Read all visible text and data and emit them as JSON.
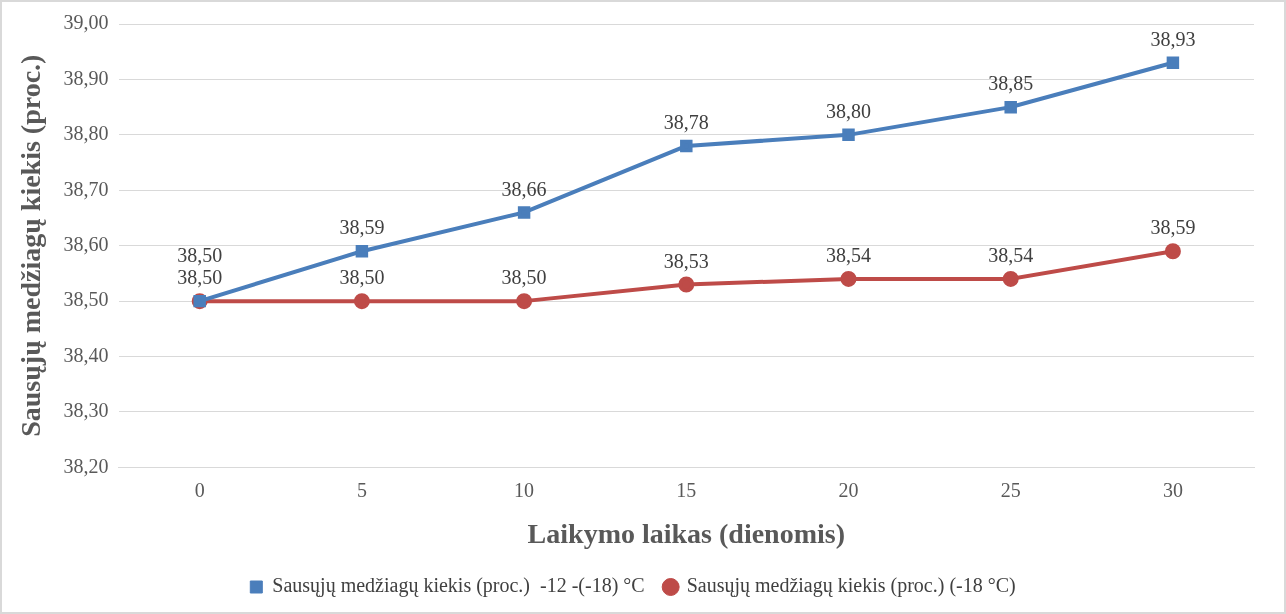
{
  "chart_data": {
    "type": "line",
    "xlabel": "Laikymo laikas (dienomis)",
    "ylabel": "Sausųjų medžiagų kiekis (proc.)",
    "categories": [
      "0",
      "5",
      "10",
      "15",
      "20",
      "25",
      "30"
    ],
    "series": [
      {
        "name": "Sausųjų medžiagų kiekis (proc.)  -12 -(-18) °C",
        "color": "#4a7ebb",
        "marker": "square",
        "values": [
          38.5,
          38.59,
          38.66,
          38.78,
          38.8,
          38.85,
          38.93
        ],
        "value_labels": [
          "38,50",
          "38,59",
          "38,66",
          "38,78",
          "38,80",
          "38,85",
          "38,93"
        ]
      },
      {
        "name": "Sausųjų medžiagų kiekis (proc.) (-18 °C)",
        "color": "#be4b48",
        "marker": "circle",
        "values": [
          38.5,
          38.5,
          38.5,
          38.53,
          38.54,
          38.54,
          38.59
        ],
        "value_labels": [
          "38,50",
          "38,50",
          "38,50",
          "38,53",
          "38,54",
          "38,54",
          "38,59"
        ]
      }
    ],
    "ylim": [
      38.2,
      39.0
    ],
    "yticks": [
      {
        "value": 38.2,
        "label": "38,20"
      },
      {
        "value": 38.3,
        "label": "38,30"
      },
      {
        "value": 38.4,
        "label": "38,40"
      },
      {
        "value": 38.5,
        "label": "38,50"
      },
      {
        "value": 38.6,
        "label": "38,60"
      },
      {
        "value": 38.7,
        "label": "38,70"
      },
      {
        "value": 38.8,
        "label": "38,80"
      },
      {
        "value": 38.9,
        "label": "38,90"
      },
      {
        "value": 39.0,
        "label": "39,00"
      }
    ],
    "grid": "y",
    "legend": "bottom",
    "line_style": "solid"
  }
}
